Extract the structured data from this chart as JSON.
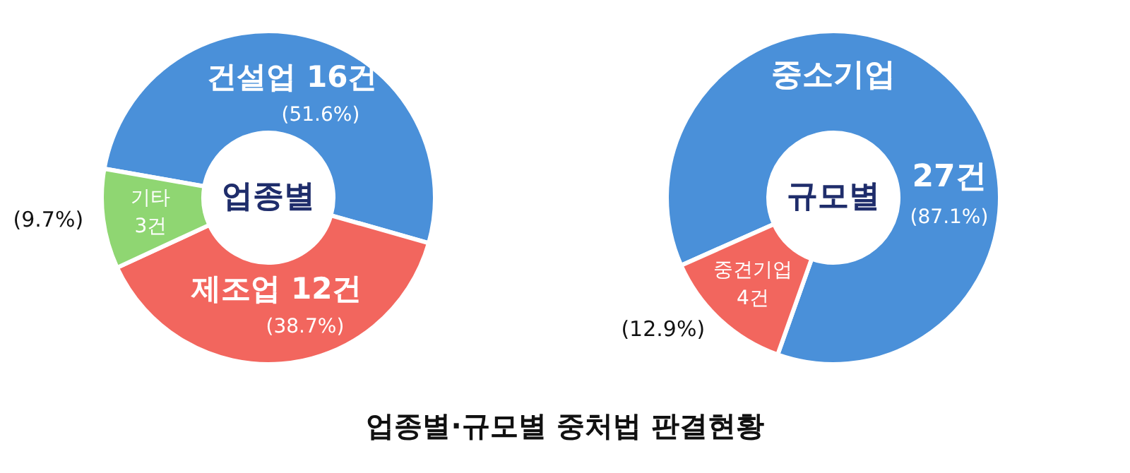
{
  "chart_data": [
    {
      "type": "donut",
      "title": "업종별",
      "categories": [
        "건설업",
        "제조업",
        "기타"
      ],
      "values": [
        16,
        12,
        3
      ],
      "value_labels": [
        "16건",
        "12건",
        "3건"
      ],
      "colors": [
        "#4a90d9",
        "#f2665e",
        "#8fd672"
      ],
      "annotations": [
        "(51.6%)",
        "(38.7%)",
        "(9.7%)"
      ]
    },
    {
      "type": "donut",
      "title": "규모별",
      "categories": [
        "중소기업",
        "중견기업"
      ],
      "values": [
        27,
        4
      ],
      "value_labels": [
        "27건",
        "4건"
      ],
      "colors": [
        "#4a90d9",
        "#f2665e"
      ],
      "annotations": [
        "(87.1%)",
        "(12.9%)",
        "업종별·규모별 중처법 판결현황"
      ]
    }
  ]
}
